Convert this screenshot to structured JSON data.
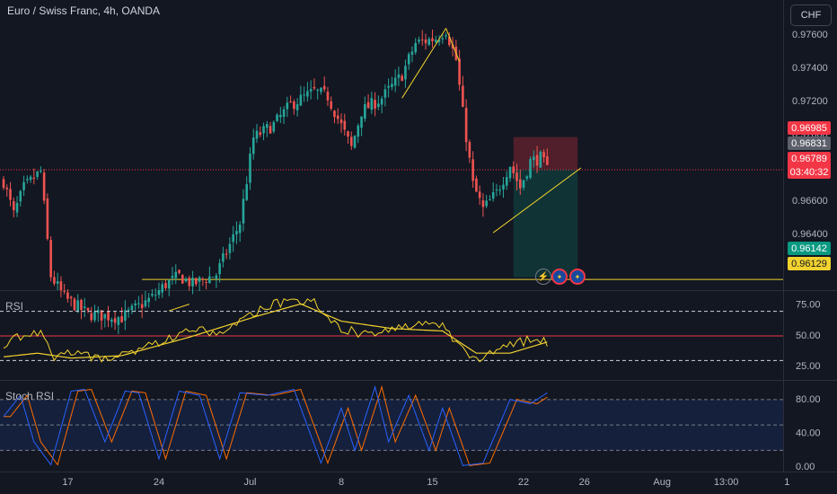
{
  "header": {
    "title": "Euro / Swiss Franc, 4h, OANDA",
    "currency_button": "CHF"
  },
  "price_tags": {
    "short_sl": "0.96985",
    "mid": "0.96831",
    "last": "0.96789",
    "countdown": "03:40:32",
    "target_green": "0.96142",
    "hline_yellow": "0.96129"
  },
  "colors": {
    "background": "#131722",
    "up": "#26a69a",
    "down": "#ef5350",
    "drawing": "#f2d22e",
    "rsi": "#f2d22e",
    "stoch_k": "#2962ff",
    "stoch_d": "#ff6d00",
    "grid": "#1e222d",
    "tag_red": "#f23645",
    "tag_gray": "#5d606b",
    "tag_green": "#089981",
    "tag_yellow": "#f2d22e"
  },
  "panes": {
    "rsi_label": "RSI",
    "stoch_label": "Stoch RSI"
  },
  "events": {
    "icon1": "lightning-icon",
    "icon2": "eu-flag-icon",
    "icon3": "eu-flag-icon"
  },
  "chart_data": [
    {
      "type": "candlestick",
      "title": "Euro / Swiss Franc, 4h, OANDA",
      "ylim": [
        0.9607,
        0.9781
      ],
      "yticks": [
        "0.97600",
        "0.97400",
        "0.97200",
        "0.97000",
        "0.96800",
        "0.96600",
        "0.96400",
        "0.96200"
      ],
      "yticks_values": [
        0.976,
        0.974,
        0.972,
        0.97,
        0.968,
        0.966,
        0.964,
        0.962
      ],
      "xticks": [
        "17",
        "24",
        "Jul",
        "8",
        "15",
        "22",
        "26",
        "Aug",
        "13:00",
        "1"
      ],
      "anchors": [
        {
          "bar": 0,
          "price": 0.9672
        },
        {
          "bar": 3,
          "price": 0.9652
        },
        {
          "bar": 6,
          "price": 0.9668
        },
        {
          "bar": 11,
          "price": 0.9678
        },
        {
          "bar": 14,
          "price": 0.9615
        },
        {
          "bar": 18,
          "price": 0.9602
        },
        {
          "bar": 25,
          "price": 0.9592
        },
        {
          "bar": 35,
          "price": 0.959
        },
        {
          "bar": 44,
          "price": 0.9602
        },
        {
          "bar": 48,
          "price": 0.961
        },
        {
          "bar": 52,
          "price": 0.9615
        },
        {
          "bar": 56,
          "price": 0.961
        },
        {
          "bar": 63,
          "price": 0.9616
        },
        {
          "bar": 70,
          "price": 0.9647
        },
        {
          "bar": 74,
          "price": 0.9698
        },
        {
          "bar": 80,
          "price": 0.9706
        },
        {
          "bar": 85,
          "price": 0.9718
        },
        {
          "bar": 92,
          "price": 0.9726
        },
        {
          "bar": 96,
          "price": 0.9723
        },
        {
          "bar": 103,
          "price": 0.9692
        },
        {
          "bar": 106,
          "price": 0.9714
        },
        {
          "bar": 112,
          "price": 0.9722
        },
        {
          "bar": 118,
          "price": 0.9736
        },
        {
          "bar": 122,
          "price": 0.9755
        },
        {
          "bar": 128,
          "price": 0.9758
        },
        {
          "bar": 131,
          "price": 0.9763
        },
        {
          "bar": 134,
          "price": 0.9745
        },
        {
          "bar": 136,
          "price": 0.9713
        },
        {
          "bar": 139,
          "price": 0.967
        },
        {
          "bar": 142,
          "price": 0.9655
        },
        {
          "bar": 146,
          "price": 0.9665
        },
        {
          "bar": 150,
          "price": 0.9682
        },
        {
          "bar": 153,
          "price": 0.9668
        },
        {
          "bar": 156,
          "price": 0.9684
        },
        {
          "bar": 159,
          "price": 0.9686
        },
        {
          "bar": 161,
          "price": 0.9679
        }
      ],
      "drawings": {
        "short_position": {
          "entry": 0.9679,
          "stop": 0.96985,
          "target": 0.96142
        },
        "horizontal_line": 0.96129,
        "current_price": 0.96789
      }
    },
    {
      "type": "line",
      "title": "RSI",
      "ylim": [
        15,
        85
      ],
      "yticks": [
        "75.00",
        "50.00",
        "25.00"
      ],
      "yticks_values": [
        75,
        50,
        25
      ],
      "levels": [
        70,
        50,
        30
      ],
      "series_anchors": [
        {
          "bar": 0,
          "value": 44
        },
        {
          "bar": 6,
          "value": 50
        },
        {
          "bar": 11,
          "value": 54
        },
        {
          "bar": 15,
          "value": 30
        },
        {
          "bar": 20,
          "value": 36
        },
        {
          "bar": 30,
          "value": 30
        },
        {
          "bar": 45,
          "value": 44
        },
        {
          "bar": 55,
          "value": 55
        },
        {
          "bar": 63,
          "value": 52
        },
        {
          "bar": 70,
          "value": 64
        },
        {
          "bar": 78,
          "value": 74
        },
        {
          "bar": 86,
          "value": 79
        },
        {
          "bar": 92,
          "value": 77
        },
        {
          "bar": 100,
          "value": 56
        },
        {
          "bar": 106,
          "value": 52
        },
        {
          "bar": 112,
          "value": 55
        },
        {
          "bar": 122,
          "value": 60
        },
        {
          "bar": 130,
          "value": 58
        },
        {
          "bar": 134,
          "value": 45
        },
        {
          "bar": 138,
          "value": 30
        },
        {
          "bar": 143,
          "value": 35
        },
        {
          "bar": 150,
          "value": 42
        },
        {
          "bar": 156,
          "value": 47
        },
        {
          "bar": 161,
          "value": 45
        }
      ],
      "ma_anchors": [
        {
          "bar": 0,
          "value": 33
        },
        {
          "bar": 10,
          "value": 36
        },
        {
          "bar": 20,
          "value": 32
        },
        {
          "bar": 35,
          "value": 34
        },
        {
          "bar": 55,
          "value": 49
        },
        {
          "bar": 75,
          "value": 66
        },
        {
          "bar": 88,
          "value": 76
        },
        {
          "bar": 100,
          "value": 62
        },
        {
          "bar": 115,
          "value": 56
        },
        {
          "bar": 130,
          "value": 54
        },
        {
          "bar": 140,
          "value": 36
        },
        {
          "bar": 150,
          "value": 36
        },
        {
          "bar": 161,
          "value": 45
        }
      ]
    },
    {
      "type": "line",
      "title": "Stoch RSI",
      "ylim": [
        -5,
        100
      ],
      "yticks": [
        "80.00",
        "40.00",
        "0.00"
      ],
      "yticks_values": [
        80,
        40,
        0
      ],
      "levels": [
        80,
        50,
        20
      ],
      "k_anchors": [
        {
          "bar": 0,
          "value": 60
        },
        {
          "bar": 5,
          "value": 85
        },
        {
          "bar": 9,
          "value": 30
        },
        {
          "bar": 14,
          "value": 3
        },
        {
          "bar": 20,
          "value": 90
        },
        {
          "bar": 24,
          "value": 92
        },
        {
          "bar": 30,
          "value": 30
        },
        {
          "bar": 36,
          "value": 90
        },
        {
          "bar": 40,
          "value": 88
        },
        {
          "bar": 46,
          "value": 10
        },
        {
          "bar": 52,
          "value": 90
        },
        {
          "bar": 58,
          "value": 85
        },
        {
          "bar": 64,
          "value": 10
        },
        {
          "bar": 70,
          "value": 88
        },
        {
          "bar": 78,
          "value": 85
        },
        {
          "bar": 86,
          "value": 92
        },
        {
          "bar": 94,
          "value": 5
        },
        {
          "bar": 100,
          "value": 70
        },
        {
          "bar": 104,
          "value": 20
        },
        {
          "bar": 110,
          "value": 95
        },
        {
          "bar": 114,
          "value": 30
        },
        {
          "bar": 120,
          "value": 85
        },
        {
          "bar": 126,
          "value": 20
        },
        {
          "bar": 130,
          "value": 70
        },
        {
          "bar": 136,
          "value": 2
        },
        {
          "bar": 142,
          "value": 5
        },
        {
          "bar": 150,
          "value": 80
        },
        {
          "bar": 156,
          "value": 75
        },
        {
          "bar": 161,
          "value": 88
        }
      ],
      "d_lag_bars": 2
    }
  ]
}
